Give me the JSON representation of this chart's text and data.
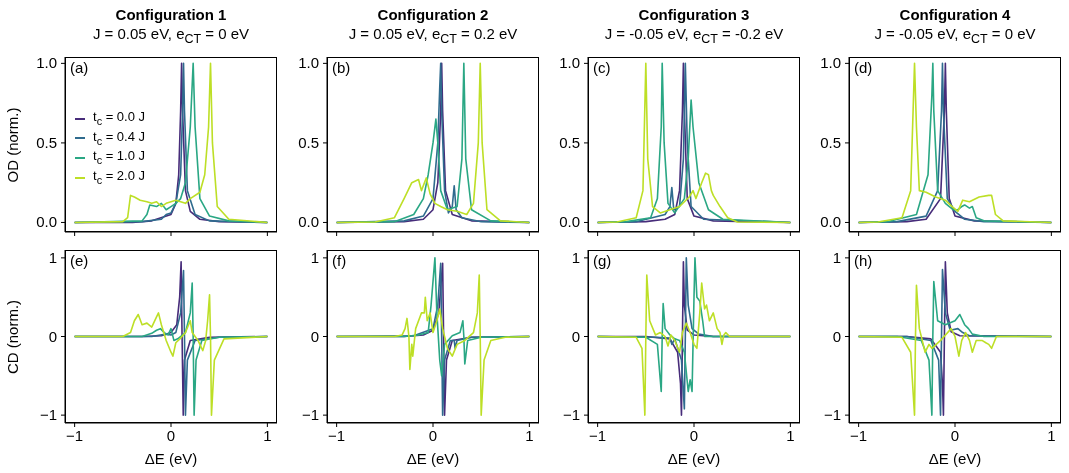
{
  "chart_data": [
    {
      "type": "line",
      "title": "Configuration 1",
      "subtitle": "J = 0.05 eV, e$_{CT}$ = 0 eV",
      "ylabel": "OD (norm.)",
      "annotations": [
        "(a)"
      ],
      "xlim": [
        -1.1,
        1.1
      ],
      "xticks": [
        -1,
        0,
        1
      ],
      "ylim": [
        -0.06,
        1.04
      ],
      "yticks": [
        {
          "value": 0,
          "label": "0.0"
        },
        {
          "value": 0.5,
          "label": "0.5"
        },
        {
          "value": 1,
          "label": "1.0"
        }
      ],
      "tick_labels": "y",
      "legend": "left",
      "series": [
        {
          "name": "t$_{c}$ = 0.0 J",
          "color": "#472c7a",
          "x": [
            -1,
            -0.4,
            -0.2,
            0,
            0.05,
            0.08,
            0.1,
            0.11,
            0.12,
            0.15,
            0.2,
            0.3,
            0.5,
            1
          ],
          "values": [
            0,
            0,
            0.01,
            0.05,
            0.12,
            0.3,
            0.7,
            1,
            0.7,
            0.2,
            0.07,
            0.02,
            0.005,
            0
          ]
        },
        {
          "name": "t$_{c}$ = 0.4 J",
          "color": "#2f6b8e",
          "x": [
            -1,
            -0.3,
            -0.1,
            -0.05,
            0,
            0.05,
            0.1,
            0.12,
            0.13,
            0.14,
            0.17,
            0.25,
            0.4,
            1
          ],
          "values": [
            0,
            0.005,
            0.02,
            0.05,
            0.06,
            0.12,
            0.3,
            0.7,
            1,
            0.7,
            0.2,
            0.05,
            0.01,
            0
          ]
        },
        {
          "name": "t$_{c}$ = 1.0 J",
          "color": "#2aa784",
          "x": [
            -1,
            -0.3,
            -0.25,
            -0.22,
            -0.15,
            -0.1,
            -0.05,
            0,
            0.05,
            0.1,
            0.15,
            0.2,
            0.23,
            0.25,
            0.3,
            0.4,
            0.6,
            1
          ],
          "values": [
            0,
            0.01,
            0.05,
            0.11,
            0.1,
            0.12,
            0.08,
            0.1,
            0.12,
            0.15,
            0.25,
            0.6,
            1,
            0.6,
            0.15,
            0.04,
            0.01,
            0
          ]
        },
        {
          "name": "t$_{c}$ = 2.0 J",
          "color": "#bddf26",
          "x": [
            -1,
            -0.5,
            -0.45,
            -0.42,
            -0.38,
            -0.32,
            -0.25,
            -0.2,
            -0.15,
            -0.1,
            -0.05,
            0,
            0.05,
            0.1,
            0.15,
            0.2,
            0.3,
            0.35,
            0.39,
            0.41,
            0.43,
            0.48,
            0.6,
            1
          ],
          "values": [
            0,
            0.005,
            0.03,
            0.17,
            0.16,
            0.14,
            0.13,
            0.12,
            0.13,
            0.1,
            0.12,
            0.13,
            0.14,
            0.13,
            0.12,
            0.15,
            0.19,
            0.3,
            0.6,
            1,
            0.5,
            0.1,
            0.02,
            0
          ]
        }
      ]
    },
    {
      "type": "line",
      "title": "Configuration 2",
      "subtitle": "J = 0.05 eV, e$_{CT}$ = 0.2 eV",
      "annotations": [
        "(b)"
      ],
      "xlim": [
        -1.1,
        1.1
      ],
      "xticks": [
        -1,
        0,
        1
      ],
      "ylim": [
        -0.06,
        1.04
      ],
      "yticks": [
        {
          "value": 0,
          "label": "0.0"
        },
        {
          "value": 0.5,
          "label": "0.5"
        },
        {
          "value": 1,
          "label": "1.0"
        }
      ],
      "tick_labels": "y",
      "series": [
        {
          "color": "#472c7a",
          "x": [
            -1,
            -0.3,
            -0.1,
            0,
            0.05,
            0.08,
            0.09,
            0.1,
            0.13,
            0.2,
            0.4,
            1
          ],
          "values": [
            0,
            0.005,
            0.02,
            0.08,
            0.25,
            0.7,
            1,
            0.7,
            0.2,
            0.05,
            0.01,
            0
          ]
        },
        {
          "color": "#2f6b8e",
          "x": [
            -1,
            -0.3,
            -0.1,
            0,
            0.05,
            0.07,
            0.08,
            0.09,
            0.12,
            0.16,
            0.2,
            0.22,
            0.24,
            0.3,
            0.5,
            1
          ],
          "values": [
            0,
            0.01,
            0.04,
            0.15,
            0.5,
            0.85,
            1,
            0.7,
            0.2,
            0.06,
            0.1,
            0.23,
            0.08,
            0.03,
            0.005,
            0
          ]
        },
        {
          "color": "#2aa784",
          "x": [
            -1,
            -0.4,
            -0.2,
            -0.1,
            -0.05,
            0,
            0.03,
            0.05,
            0.08,
            0.15,
            0.25,
            0.3,
            0.32,
            0.34,
            0.4,
            0.6,
            1
          ],
          "values": [
            0,
            0.005,
            0.05,
            0.15,
            0.3,
            0.5,
            0.65,
            0.5,
            0.2,
            0.08,
            0.1,
            0.4,
            1,
            0.4,
            0.08,
            0.01,
            0
          ]
        },
        {
          "color": "#bddf26",
          "x": [
            -1,
            -0.6,
            -0.4,
            -0.3,
            -0.22,
            -0.15,
            -0.12,
            -0.07,
            -0.03,
            0.02,
            0.08,
            0.15,
            0.25,
            0.35,
            0.42,
            0.47,
            0.49,
            0.51,
            0.56,
            0.7,
            1
          ],
          "values": [
            0,
            0.003,
            0.03,
            0.15,
            0.25,
            0.27,
            0.2,
            0.28,
            0.18,
            0.12,
            0.1,
            0.08,
            0.07,
            0.05,
            0.12,
            0.5,
            1,
            0.5,
            0.08,
            0.01,
            0
          ]
        }
      ]
    },
    {
      "type": "line",
      "title": "Configuration 3",
      "subtitle": "J = -0.05 eV, e$_{CT}$ = -0.2 eV",
      "annotations": [
        "(c)"
      ],
      "xlim": [
        -1.1,
        1.1
      ],
      "xticks": [
        -1,
        0,
        1
      ],
      "ylim": [
        -0.06,
        1.04
      ],
      "yticks": [
        {
          "value": 0,
          "label": "0.0"
        },
        {
          "value": 0.5,
          "label": "0.5"
        },
        {
          "value": 1,
          "label": "1.0"
        }
      ],
      "tick_labels": "y",
      "series": [
        {
          "color": "#472c7a",
          "x": [
            -1,
            -0.5,
            -0.3,
            -0.2,
            -0.15,
            -0.12,
            -0.11,
            -0.1,
            -0.07,
            0,
            0.2,
            1
          ],
          "values": [
            0,
            0.005,
            0.02,
            0.05,
            0.2,
            0.7,
            1,
            0.7,
            0.15,
            0.04,
            0.01,
            0
          ]
        },
        {
          "color": "#2f6b8e",
          "x": [
            -1,
            -0.6,
            -0.3,
            -0.25,
            -0.23,
            -0.21,
            -0.15,
            -0.11,
            -0.09,
            -0.07,
            -0.03,
            0.1,
            1
          ],
          "values": [
            0,
            0.005,
            0.05,
            0.1,
            0.22,
            0.08,
            0.1,
            0.4,
            1,
            0.5,
            0.1,
            0.02,
            0
          ]
        },
        {
          "color": "#2aa784",
          "x": [
            -1,
            -0.7,
            -0.45,
            -0.38,
            -0.34,
            -0.33,
            -0.31,
            -0.27,
            -0.2,
            -0.1,
            -0.06,
            -0.03,
            -0.01,
            0.05,
            0.15,
            0.3,
            1
          ],
          "values": [
            0,
            0.005,
            0.03,
            0.15,
            0.6,
            1,
            0.5,
            0.12,
            0.06,
            0.15,
            0.4,
            0.77,
            0.6,
            0.25,
            0.08,
            0.02,
            0
          ]
        },
        {
          "color": "#bddf26",
          "x": [
            -1,
            -0.8,
            -0.6,
            -0.53,
            -0.5,
            -0.48,
            -0.43,
            -0.35,
            -0.25,
            -0.15,
            -0.05,
            -0.01,
            0.02,
            0.08,
            0.12,
            0.15,
            0.18,
            0.2,
            0.27,
            0.35,
            0.45,
            1
          ],
          "values": [
            0,
            0.003,
            0.03,
            0.2,
            1,
            0.4,
            0.1,
            0.06,
            0.08,
            0.1,
            0.16,
            0.2,
            0.15,
            0.25,
            0.31,
            0.3,
            0.2,
            0.17,
            0.1,
            0.03,
            0.003,
            0
          ]
        }
      ]
    },
    {
      "type": "line",
      "title": "Configuration 4",
      "subtitle": "J = -0.05 eV, e$_{CT}$ = 0 eV",
      "annotations": [
        "(d)"
      ],
      "xlim": [
        -1.1,
        1.1
      ],
      "xticks": [
        -1,
        0,
        1
      ],
      "ylim": [
        -0.06,
        1.04
      ],
      "yticks": [
        {
          "value": 0,
          "label": "0.0"
        },
        {
          "value": 0.5,
          "label": "0.5"
        },
        {
          "value": 1,
          "label": "1.0"
        }
      ],
      "tick_labels": "y",
      "series": [
        {
          "color": "#472c7a",
          "x": [
            -1,
            -0.5,
            -0.3,
            -0.15,
            -0.11,
            -0.1,
            -0.09,
            -0.06,
            0,
            0.2,
            1
          ],
          "values": [
            0,
            0.005,
            0.02,
            0.15,
            0.7,
            1,
            0.7,
            0.15,
            0.04,
            0.01,
            0
          ]
        },
        {
          "color": "#2f6b8e",
          "x": [
            -1,
            -0.6,
            -0.3,
            -0.18,
            -0.14,
            -0.13,
            -0.12,
            -0.08,
            0,
            0.08,
            0.1,
            0.3,
            1
          ],
          "values": [
            0,
            0.005,
            0.04,
            0.2,
            0.7,
            1,
            0.7,
            0.15,
            0.07,
            0.03,
            0.02,
            0.005,
            0
          ]
        },
        {
          "color": "#2aa784",
          "x": [
            -1,
            -0.7,
            -0.4,
            -0.28,
            -0.24,
            -0.23,
            -0.22,
            -0.18,
            -0.1,
            -0.02,
            0.03,
            0.07,
            0.1,
            0.15,
            0.18,
            0.22,
            0.3,
            1
          ],
          "values": [
            0,
            0.005,
            0.05,
            0.3,
            0.8,
            1,
            0.7,
            0.2,
            0.12,
            0.08,
            0.08,
            0.1,
            0.11,
            0.09,
            0.1,
            0.03,
            0.01,
            0
          ]
        },
        {
          "color": "#bddf26",
          "x": [
            -1,
            -0.8,
            -0.55,
            -0.46,
            -0.42,
            -0.4,
            -0.37,
            -0.3,
            -0.2,
            -0.1,
            -0.03,
            0.03,
            0.08,
            0.15,
            0.25,
            0.35,
            0.38,
            0.42,
            0.5,
            1
          ],
          "values": [
            0,
            0.003,
            0.03,
            0.2,
            1,
            0.6,
            0.2,
            0.19,
            0.16,
            0.14,
            0.1,
            0.07,
            0.14,
            0.13,
            0.16,
            0.17,
            0.17,
            0.05,
            0.01,
            0
          ]
        }
      ]
    },
    {
      "type": "line",
      "xlabel": "ΔE (eV)",
      "ylabel": "CD (norm.)",
      "annotations": [
        "(e)"
      ],
      "xlim": [
        -1.1,
        1.1
      ],
      "xticks": [
        {
          "value": -1,
          "label": "−1"
        },
        {
          "value": 0,
          "label": "0"
        },
        {
          "value": 1,
          "label": "1"
        }
      ],
      "ylim": [
        -1.1,
        1.1
      ],
      "yticks": [
        {
          "value": -1,
          "label": "−1"
        },
        {
          "value": 0,
          "label": "0"
        },
        {
          "value": 1,
          "label": "1"
        }
      ],
      "series": [
        {
          "color": "#472c7a",
          "x": [
            -1,
            -0.3,
            -0.1,
            0,
            0.06,
            0.09,
            0.105,
            0.115,
            0.127,
            0.14,
            0.2,
            0.4,
            1
          ],
          "values": [
            0,
            0,
            0.01,
            0.05,
            0.15,
            0.5,
            0.95,
            0,
            -1,
            -0.3,
            -0.05,
            -0.01,
            0
          ]
        },
        {
          "color": "#2f6b8e",
          "x": [
            -1,
            -0.2,
            -0.05,
            0,
            0.05,
            0.1,
            0.13,
            0.14,
            0.15,
            0.17,
            0.25,
            0.5,
            1
          ],
          "values": [
            0,
            0,
            0.03,
            0.02,
            0.05,
            0.3,
            0.84,
            0,
            -1,
            -0.3,
            -0.05,
            -0.01,
            0
          ]
        },
        {
          "color": "#2aa784",
          "x": [
            -1,
            -0.3,
            -0.2,
            -0.15,
            -0.11,
            -0.07,
            -0.03,
            0,
            0.03,
            0.07,
            0.15,
            0.2,
            0.22,
            0.23,
            0.24,
            0.26,
            0.32,
            0.5,
            1
          ],
          "values": [
            0,
            0,
            0.04,
            0.08,
            0.1,
            0.05,
            0.02,
            0.1,
            -0.05,
            -0.03,
            0.05,
            0.3,
            0.68,
            0,
            -1,
            -0.3,
            -0.05,
            -0.01,
            0
          ]
        },
        {
          "color": "#bddf26",
          "x": [
            -1,
            -0.5,
            -0.42,
            -0.38,
            -0.34,
            -0.3,
            -0.25,
            -0.2,
            -0.15,
            -0.13,
            -0.1,
            -0.05,
            0,
            0.02,
            0.05,
            0.1,
            0.15,
            0.2,
            0.22,
            0.28,
            0.33,
            0.36,
            0.38,
            0.4,
            0.41,
            0.42,
            0.45,
            0.55,
            1
          ],
          "values": [
            0,
            0,
            0.05,
            0.2,
            0.28,
            0.15,
            0.17,
            0.12,
            0.25,
            0.3,
            0.15,
            -0.05,
            -0.2,
            -0.25,
            -0.08,
            -0.02,
            0.05,
            0.2,
            0.05,
            -0.05,
            -0.18,
            -0.05,
            0.2,
            0.53,
            0,
            -1,
            -0.3,
            -0.03,
            0
          ]
        }
      ]
    },
    {
      "type": "line",
      "xlabel": "ΔE (eV)",
      "annotations": [
        "(f)"
      ],
      "xlim": [
        -1.1,
        1.1
      ],
      "xticks": [
        {
          "value": -1,
          "label": "−1"
        },
        {
          "value": 0,
          "label": "0"
        },
        {
          "value": 1,
          "label": "1"
        }
      ],
      "ylim": [
        -1.1,
        1.1
      ],
      "yticks": [
        {
          "value": -1,
          "label": "−1"
        },
        {
          "value": 0,
          "label": "0"
        },
        {
          "value": 1,
          "label": "1"
        }
      ],
      "series": [
        {
          "color": "#472c7a",
          "x": [
            -1,
            -0.3,
            -0.1,
            0,
            0.06,
            0.1,
            0.11,
            0.12,
            0.14,
            0.2,
            0.4,
            1
          ],
          "values": [
            0,
            0,
            0.02,
            0.08,
            0.3,
            0.93,
            0,
            -1,
            -0.3,
            -0.05,
            -0.01,
            0
          ]
        },
        {
          "color": "#2f6b8e",
          "x": [
            -1,
            -0.2,
            0,
            0.05,
            0.08,
            0.09,
            0.1,
            0.12,
            0.18,
            0.22,
            0.23,
            0.25,
            0.4,
            1
          ],
          "values": [
            0,
            0.01,
            0.1,
            0.4,
            0.93,
            0,
            -1,
            -0.3,
            -0.05,
            -0.05,
            -0.15,
            -0.05,
            -0.01,
            0
          ]
        },
        {
          "color": "#2aa784",
          "x": [
            -1,
            -0.3,
            -0.15,
            -0.05,
            -0.02,
            0.02,
            0.04,
            0.07,
            0.09,
            0.12,
            0.2,
            0.28,
            0.31,
            0.32,
            0.33,
            0.36,
            0.5,
            1
          ],
          "values": [
            0,
            0,
            0.02,
            0.05,
            0.4,
            1,
            0.3,
            -0.3,
            -0.5,
            -0.1,
            0.01,
            0.05,
            0.2,
            0,
            -0.35,
            -0.05,
            -0.01,
            0
          ]
        },
        {
          "color": "#bddf26",
          "x": [
            -1,
            -0.4,
            -0.32,
            -0.29,
            -0.27,
            -0.25,
            -0.24,
            -0.22,
            -0.21,
            -0.18,
            -0.12,
            -0.09,
            -0.08,
            -0.06,
            -0.03,
            0,
            0.04,
            0.07,
            0.1,
            0.15,
            0.2,
            0.25,
            0.33,
            0.42,
            0.46,
            0.48,
            0.49,
            0.5,
            0.53,
            0.6,
            0.75,
            1
          ],
          "values": [
            0,
            0,
            0.02,
            0.1,
            0.23,
            0,
            -0.42,
            -0.1,
            -0.25,
            0.1,
            0.3,
            0.3,
            0.5,
            0.2,
            0.3,
            0.05,
            0.2,
            0.35,
            0.1,
            -0.15,
            -0.25,
            -0.1,
            -0.05,
            0.05,
            0.3,
            0.78,
            0,
            -1,
            -0.3,
            -0.05,
            -0.01,
            0
          ]
        }
      ]
    },
    {
      "type": "line",
      "xlabel": "ΔE (eV)",
      "annotations": [
        "(g)"
      ],
      "xlim": [
        -1.1,
        1.1
      ],
      "xticks": [
        {
          "value": -1,
          "label": "−1"
        },
        {
          "value": 0,
          "label": "0"
        },
        {
          "value": 1,
          "label": "1"
        }
      ],
      "ylim": [
        -1.1,
        1.1
      ],
      "yticks": [
        {
          "value": -1,
          "label": "−1"
        },
        {
          "value": 0,
          "label": "0"
        },
        {
          "value": 1,
          "label": "1"
        }
      ],
      "series": [
        {
          "color": "#472c7a",
          "x": [
            -1,
            -0.5,
            -0.25,
            -0.17,
            -0.14,
            -0.13,
            -0.12,
            -0.11,
            -0.1,
            -0.07,
            0,
            0.2,
            1
          ],
          "values": [
            0,
            0,
            -0.03,
            -0.2,
            -0.6,
            -1,
            0,
            0.95,
            0.4,
            0.08,
            0.02,
            0,
            0
          ]
        },
        {
          "color": "#2f6b8e",
          "x": [
            -1,
            -0.4,
            -0.25,
            -0.23,
            -0.2,
            -0.13,
            -0.1,
            -0.09,
            -0.08,
            -0.06,
            -0.02,
            0.05,
            0.2,
            1
          ],
          "values": [
            0,
            -0.01,
            -0.02,
            -0.1,
            -0.03,
            -0.3,
            -0.92,
            0,
            1,
            0.4,
            0.1,
            0.03,
            0,
            0
          ]
        },
        {
          "color": "#2aa784",
          "x": [
            -1,
            -0.5,
            -0.38,
            -0.34,
            -0.33,
            -0.32,
            -0.3,
            -0.25,
            -0.2,
            -0.15,
            -0.1,
            -0.06,
            -0.04,
            -0.02,
            0,
            0.01,
            0.03,
            0.06,
            0.09,
            0.11,
            0.2,
            1
          ],
          "values": [
            0,
            -0.01,
            -0.1,
            -0.7,
            0,
            0.42,
            0.1,
            0.02,
            -0.03,
            -0.05,
            -0.2,
            -0.7,
            -0.55,
            -0.7,
            0.5,
            1,
            0.5,
            0.45,
            0.2,
            0,
            0,
            0
          ]
        },
        {
          "color": "#bddf26",
          "x": [
            -1,
            -0.6,
            -0.54,
            -0.51,
            -0.5,
            -0.49,
            -0.46,
            -0.4,
            -0.35,
            -0.3,
            -0.27,
            -0.24,
            -0.2,
            -0.15,
            -0.12,
            -0.08,
            -0.04,
            0,
            0.03,
            0.06,
            0.08,
            0.11,
            0.13,
            0.16,
            0.2,
            0.24,
            0.27,
            0.29,
            0.31,
            0.33,
            0.37,
            1
          ],
          "values": [
            0,
            -0.01,
            -0.15,
            -1,
            0,
            0.78,
            0.2,
            0.02,
            0.05,
            0,
            -0.12,
            0.02,
            -0.05,
            -0.2,
            0.05,
            0.17,
            0.05,
            -0.1,
            -0.15,
            0.3,
            0.68,
            0.35,
            0.4,
            0.2,
            0.3,
            0.1,
            0.05,
            -0.1,
            0.02,
            0.05,
            0,
            0
          ]
        }
      ]
    },
    {
      "type": "line",
      "xlabel": "ΔE (eV)",
      "annotations": [
        "(h)"
      ],
      "xlim": [
        -1.1,
        1.1
      ],
      "xticks": [
        {
          "value": -1,
          "label": "−1"
        },
        {
          "value": 0,
          "label": "0"
        },
        {
          "value": 1,
          "label": "1"
        }
      ],
      "ylim": [
        -1.1,
        1.1
      ],
      "yticks": [
        {
          "value": -1,
          "label": "−1"
        },
        {
          "value": 0,
          "label": "0"
        },
        {
          "value": 1,
          "label": "1"
        }
      ],
      "series": [
        {
          "color": "#472c7a",
          "x": [
            -1,
            -0.5,
            -0.25,
            -0.15,
            -0.13,
            -0.12,
            -0.11,
            -0.1,
            -0.08,
            -0.04,
            0.05,
            1
          ],
          "values": [
            0,
            0,
            -0.03,
            -0.2,
            -0.6,
            -1,
            0,
            0.95,
            0.3,
            0.06,
            0.01,
            0
          ]
        },
        {
          "color": "#2f6b8e",
          "x": [
            -1,
            -0.5,
            -0.25,
            -0.17,
            -0.15,
            -0.14,
            -0.13,
            -0.1,
            -0.05,
            0.03,
            0.08,
            0.15,
            1
          ],
          "values": [
            0,
            0,
            -0.05,
            -0.3,
            -1,
            0,
            0.85,
            0.3,
            0.08,
            0.1,
            0.05,
            0.01,
            0
          ]
        },
        {
          "color": "#2aa784",
          "x": [
            -1,
            -0.6,
            -0.35,
            -0.27,
            -0.24,
            -0.23,
            -0.22,
            -0.18,
            -0.1,
            0,
            0.05,
            0.1,
            0.14,
            0.18,
            0.3,
            1
          ],
          "values": [
            0,
            0,
            -0.05,
            -0.3,
            -1,
            0,
            0.7,
            0.2,
            0.15,
            0.2,
            0.28,
            0.15,
            0.1,
            0.03,
            0,
            0
          ]
        },
        {
          "color": "#bddf26",
          "x": [
            -1,
            -0.55,
            -0.46,
            -0.42,
            -0.41,
            -0.4,
            -0.37,
            -0.34,
            -0.31,
            -0.27,
            -0.24,
            -0.15,
            -0.04,
            0,
            0.04,
            0.07,
            0.11,
            0.15,
            0.18,
            0.22,
            0.28,
            0.32,
            0.35,
            0.38,
            0.43,
            1
          ],
          "values": [
            0,
            -0.01,
            -0.2,
            -1,
            0,
            0.65,
            0.1,
            -0.05,
            -0.2,
            -0.1,
            -0.15,
            -0.05,
            0.1,
            0,
            -0.25,
            -0.05,
            0.05,
            -0.05,
            -0.2,
            -0.05,
            -0.05,
            -0.08,
            -0.1,
            -0.15,
            0,
            0
          ]
        }
      ]
    }
  ]
}
